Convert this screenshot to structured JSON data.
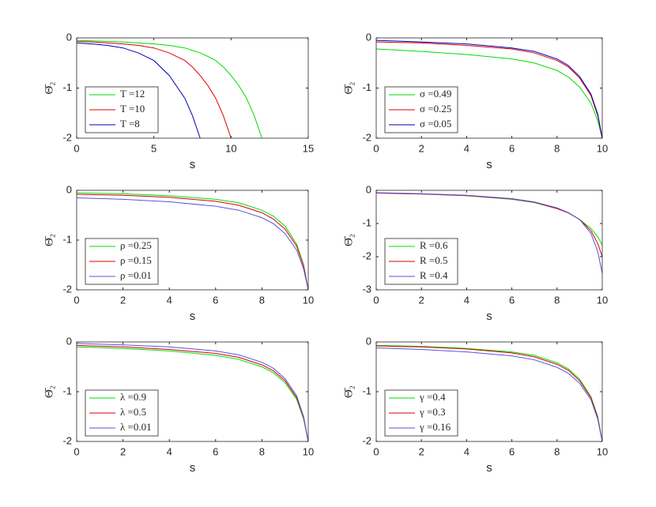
{
  "chart_data": [
    {
      "type": "line",
      "x_label": "s",
      "y_label": "Θ̄₂",
      "xlim": [
        0,
        15
      ],
      "ylim": [
        -2,
        0
      ],
      "xticks": [
        0,
        5,
        10,
        15
      ],
      "yticks": [
        0,
        -1,
        -2
      ],
      "x": [
        0,
        1,
        2,
        3,
        4,
        5,
        6,
        7,
        7.5,
        8,
        8.5,
        9,
        9.5,
        10,
        10.5,
        11,
        11.5,
        12
      ],
      "series": [
        {
          "name": "T =12",
          "color": "#00dd00",
          "values": [
            -0.05,
            -0.06,
            -0.07,
            -0.08,
            -0.1,
            -0.12,
            -0.15,
            -0.2,
            -0.25,
            -0.3,
            -0.37,
            -0.45,
            -0.58,
            -0.75,
            -0.95,
            -1.2,
            -1.55,
            -2
          ]
        },
        {
          "name": "T =10",
          "color": "#dd0000",
          "values": [
            -0.07,
            -0.08,
            -0.1,
            -0.12,
            -0.15,
            -0.2,
            -0.3,
            -0.45,
            -0.58,
            -0.75,
            -0.95,
            -1.2,
            -1.55,
            -2,
            null,
            null,
            null,
            null
          ]
        },
        {
          "name": "T =8",
          "color": "#0000bb",
          "values": [
            -0.1,
            -0.12,
            -0.15,
            -0.2,
            -0.3,
            -0.45,
            -0.75,
            -1.2,
            -1.55,
            -2,
            null,
            null,
            null,
            null,
            null,
            null,
            null,
            null
          ]
        }
      ]
    },
    {
      "type": "line",
      "x_label": "s",
      "y_label": "Θ̄₂",
      "xlim": [
        0,
        10
      ],
      "ylim": [
        -2,
        0
      ],
      "xticks": [
        0,
        2,
        4,
        6,
        8,
        10
      ],
      "yticks": [
        0,
        -1,
        -2
      ],
      "x": [
        0,
        2,
        4,
        6,
        7,
        8,
        8.5,
        9,
        9.5,
        9.8,
        10
      ],
      "series": [
        {
          "name": "σ =0.49",
          "color": "#00dd00",
          "values": [
            -0.22,
            -0.27,
            -0.33,
            -0.42,
            -0.5,
            -0.65,
            -0.78,
            -0.98,
            -1.3,
            -1.65,
            -2
          ]
        },
        {
          "name": "σ =0.25",
          "color": "#dd0000",
          "values": [
            -0.08,
            -0.1,
            -0.15,
            -0.22,
            -0.3,
            -0.45,
            -0.58,
            -0.8,
            -1.15,
            -1.55,
            -2
          ]
        },
        {
          "name": "σ =0.05",
          "color": "#0000bb",
          "values": [
            -0.05,
            -0.08,
            -0.12,
            -0.2,
            -0.27,
            -0.42,
            -0.55,
            -0.77,
            -1.12,
            -1.52,
            -2
          ]
        }
      ]
    },
    {
      "type": "line",
      "x_label": "s",
      "y_label": "Θ̄₂",
      "xlim": [
        0,
        10
      ],
      "ylim": [
        -2,
        0
      ],
      "xticks": [
        0,
        2,
        4,
        6,
        8,
        10
      ],
      "yticks": [
        0,
        -1,
        -2
      ],
      "x": [
        0,
        2,
        4,
        6,
        7,
        8,
        8.5,
        9,
        9.5,
        9.8,
        10
      ],
      "series": [
        {
          "name": "ρ =0.25",
          "color": "#00dd00",
          "values": [
            -0.05,
            -0.07,
            -0.11,
            -0.18,
            -0.25,
            -0.4,
            -0.52,
            -0.72,
            -1.08,
            -1.5,
            -2
          ]
        },
        {
          "name": "ρ =0.15",
          "color": "#dd0000",
          "values": [
            -0.08,
            -0.1,
            -0.14,
            -0.22,
            -0.3,
            -0.45,
            -0.58,
            -0.78,
            -1.12,
            -1.52,
            -2
          ]
        },
        {
          "name": "ρ =0.01",
          "color": "#5555dd",
          "values": [
            -0.15,
            -0.18,
            -0.23,
            -0.32,
            -0.4,
            -0.55,
            -0.67,
            -0.87,
            -1.2,
            -1.58,
            -2
          ]
        }
      ]
    },
    {
      "type": "line",
      "x_label": "s",
      "y_label": "Θ̄₂",
      "xlim": [
        0,
        10
      ],
      "ylim": [
        -3,
        0
      ],
      "xticks": [
        0,
        2,
        4,
        6,
        8,
        10
      ],
      "yticks": [
        0,
        -1,
        -2,
        -3
      ],
      "x": [
        0,
        2,
        4,
        6,
        7,
        8,
        8.5,
        9,
        9.5,
        9.8,
        10
      ],
      "series": [
        {
          "name": "R =0.6",
          "color": "#00dd00",
          "values": [
            -0.08,
            -0.11,
            -0.16,
            -0.27,
            -0.37,
            -0.55,
            -0.68,
            -0.88,
            -1.15,
            -1.4,
            -1.65
          ]
        },
        {
          "name": "R =0.5",
          "color": "#dd0000",
          "values": [
            -0.08,
            -0.11,
            -0.16,
            -0.26,
            -0.36,
            -0.55,
            -0.68,
            -0.88,
            -1.22,
            -1.6,
            -2
          ]
        },
        {
          "name": "R =0.4",
          "color": "#5555dd",
          "values": [
            -0.07,
            -0.1,
            -0.15,
            -0.25,
            -0.35,
            -0.53,
            -0.67,
            -0.88,
            -1.3,
            -1.85,
            -2.5
          ]
        }
      ]
    },
    {
      "type": "line",
      "x_label": "s",
      "y_label": "Θ̄₂",
      "xlim": [
        0,
        10
      ],
      "ylim": [
        -2,
        0
      ],
      "xticks": [
        0,
        2,
        4,
        6,
        8,
        10
      ],
      "yticks": [
        0,
        -1,
        -2
      ],
      "x": [
        0,
        2,
        4,
        6,
        7,
        8,
        8.5,
        9,
        9.5,
        9.8,
        10
      ],
      "series": [
        {
          "name": "λ =0.9",
          "color": "#00dd00",
          "values": [
            -0.1,
            -0.13,
            -0.18,
            -0.27,
            -0.35,
            -0.5,
            -0.62,
            -0.82,
            -1.15,
            -1.55,
            -2
          ]
        },
        {
          "name": "λ =0.5",
          "color": "#dd0000",
          "values": [
            -0.07,
            -0.1,
            -0.15,
            -0.23,
            -0.31,
            -0.46,
            -0.58,
            -0.78,
            -1.12,
            -1.52,
            -2
          ]
        },
        {
          "name": "λ =0.01",
          "color": "#5555dd",
          "values": [
            -0.03,
            -0.06,
            -0.1,
            -0.18,
            -0.26,
            -0.41,
            -0.53,
            -0.74,
            -1.08,
            -1.5,
            -2
          ]
        }
      ]
    },
    {
      "type": "line",
      "x_label": "s",
      "y_label": "Θ̄₂",
      "xlim": [
        0,
        10
      ],
      "ylim": [
        -2,
        0
      ],
      "xticks": [
        0,
        2,
        4,
        6,
        8,
        10
      ],
      "yticks": [
        0,
        -1,
        -2
      ],
      "x": [
        0,
        2,
        4,
        6,
        7,
        8,
        8.5,
        9,
        9.5,
        9.8,
        10
      ],
      "series": [
        {
          "name": "γ =0.4",
          "color": "#00dd00",
          "values": [
            -0.07,
            -0.09,
            -0.13,
            -0.2,
            -0.27,
            -0.42,
            -0.54,
            -0.75,
            -1.1,
            -1.5,
            -2
          ]
        },
        {
          "name": "γ =0.3",
          "color": "#dd0000",
          "values": [
            -0.08,
            -0.1,
            -0.14,
            -0.22,
            -0.3,
            -0.45,
            -0.57,
            -0.78,
            -1.12,
            -1.52,
            -2
          ]
        },
        {
          "name": "γ =0.16",
          "color": "#5555dd",
          "values": [
            -0.12,
            -0.15,
            -0.2,
            -0.28,
            -0.36,
            -0.51,
            -0.63,
            -0.83,
            -1.16,
            -1.55,
            -2
          ]
        }
      ]
    }
  ]
}
